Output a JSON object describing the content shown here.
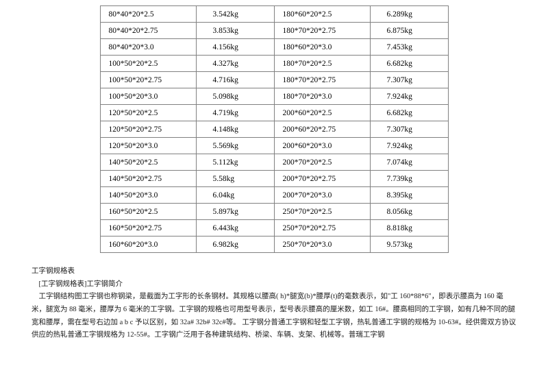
{
  "table": {
    "background_color": "#ffffff",
    "border_color": "#808080",
    "font_size": 11.5,
    "rows": [
      {
        "a1": "80*40*20*2.5",
        "a2": "3.542kg",
        "a3": "180*60*20*2.5",
        "a4": "6.289kg"
      },
      {
        "a1": "80*40*20*2.75",
        "a2": "3.853kg",
        "a3": "180*70*20*2.75",
        "a4": "6.875kg"
      },
      {
        "a1": "80*40*20*3.0",
        "a2": "4.156kg",
        "a3": "180*60*20*3.0",
        "a4": "7.453kg"
      },
      {
        "a1": "100*50*20*2.5",
        "a2": "4.327kg",
        "a3": "180*70*20*2.5",
        "a4": "6.682kg"
      },
      {
        "a1": "100*50*20*2.75",
        "a2": "4.716kg",
        "a3": "180*70*20*2.75",
        "a4": "7.307kg"
      },
      {
        "a1": "100*50*20*3.0",
        "a2": "5.098kg",
        "a3": "180*70*20*3.0",
        "a4": "7.924kg"
      },
      {
        "a1": "120*50*20*2.5",
        "a2": "4.719kg",
        "a3": "200*60*20*2.5",
        "a4": "6.682kg"
      },
      {
        "a1": "120*50*20*2.75",
        "a2": "4.148kg",
        "a3": "200*60*20*2.75",
        "a4": "7.307kg"
      },
      {
        "a1": "120*50*20*3.0",
        "a2": "5.569kg",
        "a3": "200*60*20*3.0",
        "a4": "7.924kg"
      },
      {
        "a1": "140*50*20*2.5",
        "a2": "5.112kg",
        "a3": "200*70*20*2.5",
        "a4": "7.074kg"
      },
      {
        "a1": "140*50*20*2.75",
        "a2": "5.58kg",
        "a3": "200*70*20*2.75",
        "a4": "7.739kg"
      },
      {
        "a1": "140*50*20*3.0",
        "a2": "6.04kg",
        "a3": "200*70*20*3.0",
        "a4": "8.395kg"
      },
      {
        "a1": "160*50*20*2.5",
        "a2": "5.897kg",
        "a3": "250*70*20*2.5",
        "a4": "8.056kg"
      },
      {
        "a1": "160*50*20*2.75",
        "a2": "6.443kg",
        "a3": "250*70*20*2.75",
        "a4": "8.818kg"
      },
      {
        "a1": "160*60*20*3.0",
        "a2": "6.982kg",
        "a3": "250*70*20*3.0",
        "a4": "9.573kg"
      }
    ]
  },
  "paragraphs": {
    "t1": "工字钢规格表",
    "t2": "[工字钢规格表]工字钢简介",
    "body": "工字钢结构图工字钢也称钢梁，是截面为工字形的长条钢材。其规格以腰高(  h)*腿宽(b)*腰厚(t)的毫数表示，如\"工 160*88*6\"，即表示腰高为 160 毫米，腿宽为 88 毫米，腰厚为 6 毫米的工字钢。工字钢的规格也可用型号表示，型号表示腰高的厘米数，如工 16#。腰高相同的工字钢，如有几种不同的腿宽和腰厚，需在型号右边加 a b c  予以区别，如 32a# 32b# 32c#等。  工字钢分普通工字钢和轻型工字钢，热轧普通工字钢的规格为 10-63#。经供需双方协议供应的热轧普通工字钢规格为 12-55#。工字钢广泛用于各种建筑结构、桥梁、车辆、支架、机械等。普瑞工字钢"
  }
}
